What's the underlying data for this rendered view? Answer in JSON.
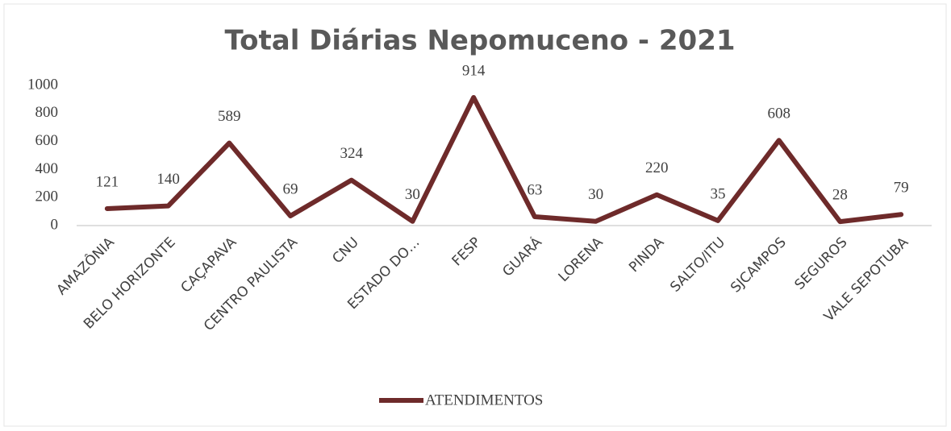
{
  "chart_data": {
    "type": "line",
    "title": "Total Diárias Nepomuceno - 2021",
    "categories": [
      "AMAZÔNIA",
      "BELO HORIZONTE",
      "CAÇAPAVA",
      "CENTRO PAULISTA",
      "CNU",
      "ESTADO DO…",
      "FESP",
      "GUARÁ",
      "LORENA",
      "PINDA",
      "SALTO/ITU",
      "SJCAMPOS",
      "SEGUROS",
      "VALE SEPOTUBA"
    ],
    "series": [
      {
        "name": "ATENDIMENTOS",
        "color": "#6e2a2a",
        "values": [
          121,
          140,
          589,
          69,
          324,
          30,
          914,
          63,
          30,
          220,
          35,
          608,
          28,
          79
        ]
      }
    ],
    "ylim": [
      0,
      1000
    ],
    "yticks": [
      0,
      200,
      400,
      600,
      800,
      1000
    ],
    "grid": false,
    "legend": "bottom"
  }
}
